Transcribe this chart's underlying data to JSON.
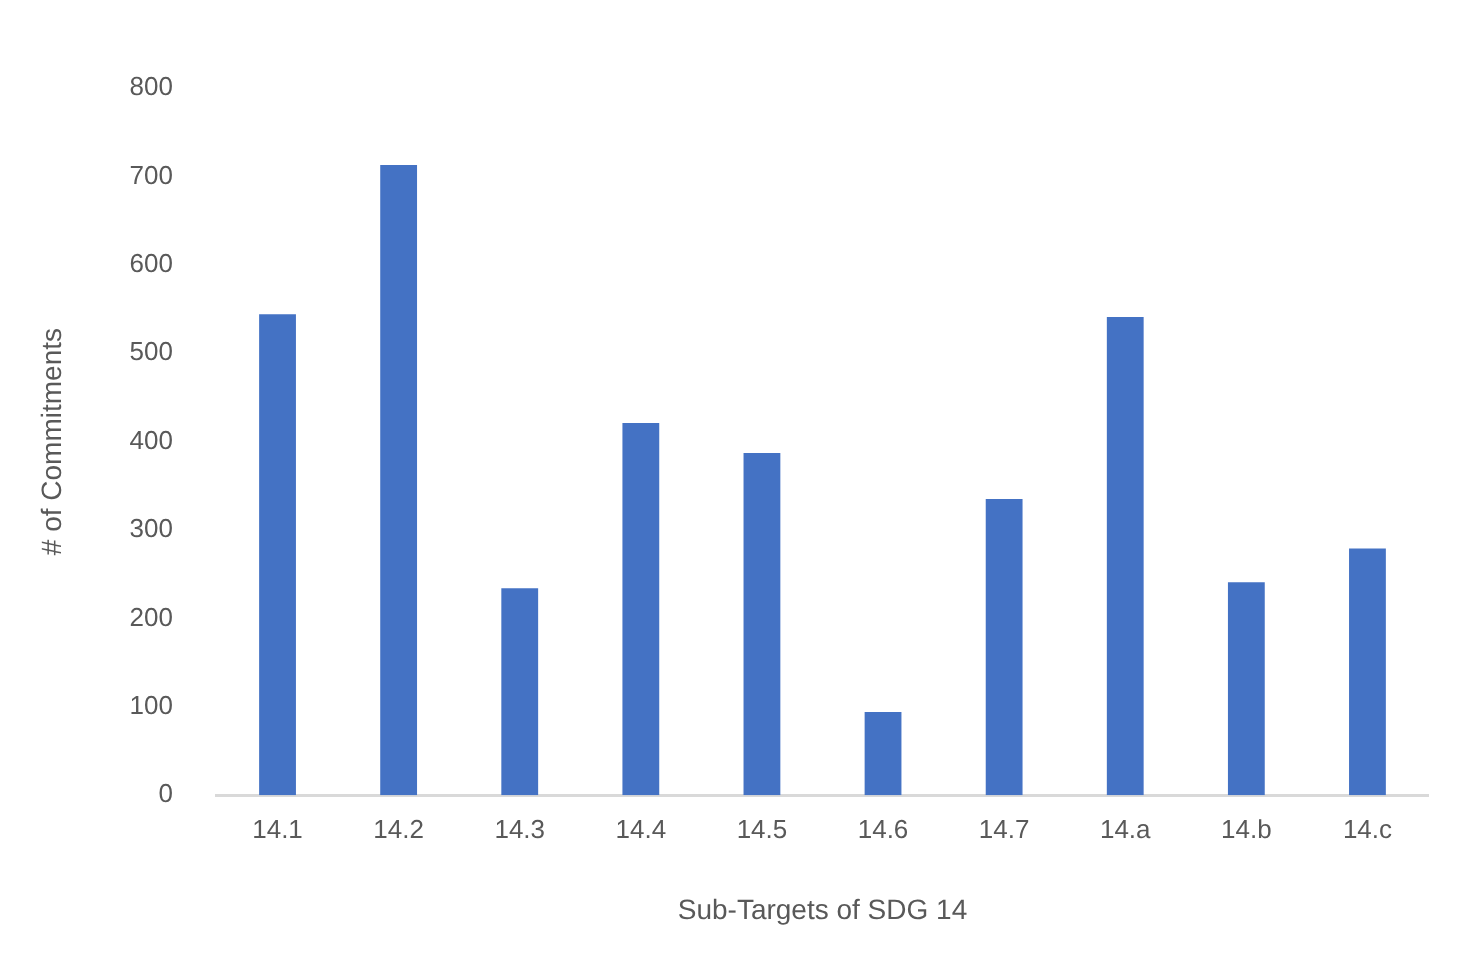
{
  "chart_data": {
    "type": "bar",
    "xlabel": "Sub-Targets of SDG 14",
    "ylabel": "# of Commitments",
    "categories": [
      "14.1",
      "14.2",
      "14.3",
      "14.4",
      "14.5",
      "14.6",
      "14.7",
      "14.a",
      "14.b",
      "14.c"
    ],
    "values": [
      544,
      713,
      234,
      421,
      387,
      94,
      335,
      541,
      241,
      279
    ],
    "color": "#4472c4",
    "ylim": [
      0,
      800
    ],
    "yticks": [
      0,
      100,
      200,
      300,
      400,
      500,
      600,
      700,
      800
    ],
    "grid": false,
    "legend": false
  }
}
